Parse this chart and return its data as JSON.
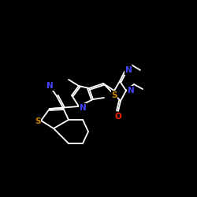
{
  "background_color": "#000000",
  "bond_color": "#ffffff",
  "atom_colors": {
    "N": "#4444ff",
    "S": "#cc8800",
    "O": "#ff2200",
    "C": "#ffffff"
  },
  "figsize": [
    2.5,
    2.5
  ],
  "dpi": 100,
  "lw": 1.3,
  "fs": 7.5
}
